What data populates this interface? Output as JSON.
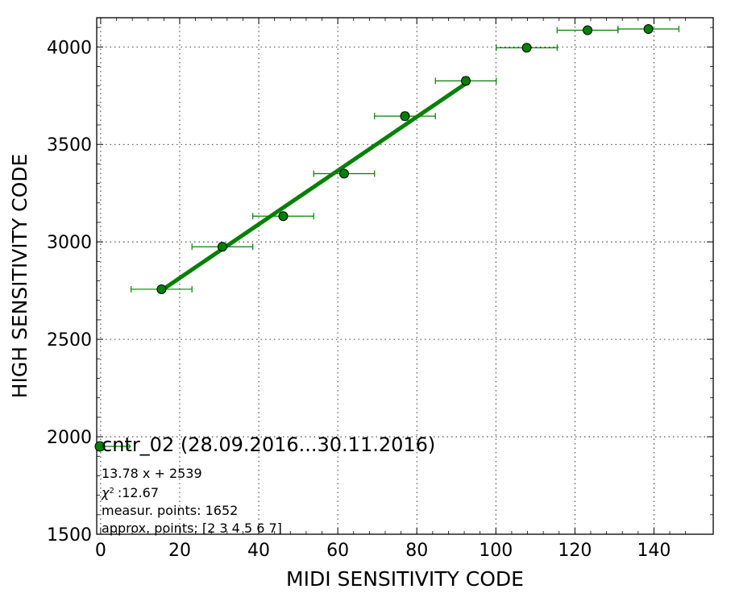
{
  "chart_data": {
    "type": "scatter",
    "xlabel": "MIDI SENSITIVITY CODE",
    "ylabel": "HIGH SENSITIVITY CODE",
    "xlim": [
      -1,
      155
    ],
    "ylim": [
      1500,
      4150
    ],
    "xticks": [
      0,
      20,
      40,
      60,
      80,
      100,
      120,
      140
    ],
    "yticks": [
      1500,
      2000,
      2500,
      3000,
      3500,
      4000
    ],
    "grid": true,
    "colors": {
      "series": "#008000",
      "marker_edge": "#000000"
    },
    "series": [
      {
        "kind": "points-with-xerror",
        "points": [
          {
            "x": 15.4,
            "y": 2757,
            "xerr": 7.7,
            "yerr": 6
          },
          {
            "x": 30.8,
            "y": 2975,
            "xerr": 7.7,
            "yerr": 6
          },
          {
            "x": 46.2,
            "y": 3132,
            "xerr": 7.7,
            "yerr": 6
          },
          {
            "x": 61.6,
            "y": 3350,
            "xerr": 7.7,
            "yerr": 6
          },
          {
            "x": 77.0,
            "y": 3645,
            "xerr": 7.7,
            "yerr": 20
          },
          {
            "x": 92.4,
            "y": 3826,
            "xerr": 7.7,
            "yerr": 20
          },
          {
            "x": 107.8,
            "y": 3996,
            "xerr": 7.7,
            "yerr": 6
          },
          {
            "x": 123.2,
            "y": 4086,
            "xerr": 7.7,
            "yerr": 6
          },
          {
            "x": 138.6,
            "y": 4092,
            "xerr": 7.7,
            "yerr": 6
          }
        ]
      },
      {
        "kind": "fit-line",
        "slope": 13.78,
        "intercept": 2539,
        "x_range": [
          15.4,
          92.4
        ]
      }
    ],
    "legend": {
      "location": "lower-left",
      "label": "cntr_02 (28.09.2016...30.11.2016)"
    },
    "annotations": [
      "13.78 x + 2539",
      ":12.67",
      "measur. points: 1652",
      "approx. points: [2 3 4 5 6 7]"
    ],
    "chi_symbol": "χ",
    "chi_exponent": "2"
  }
}
